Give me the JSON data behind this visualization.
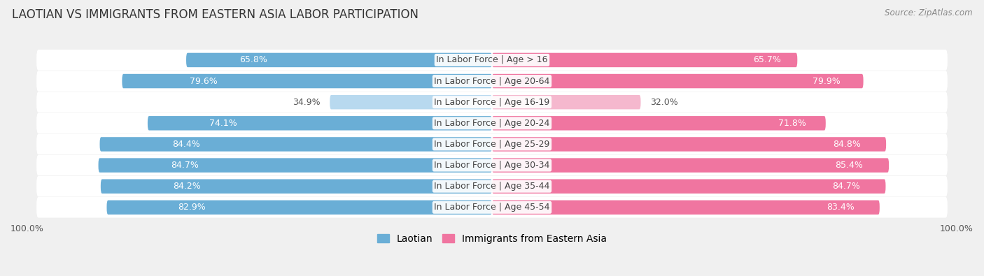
{
  "title": "LAOTIAN VS IMMIGRANTS FROM EASTERN ASIA LABOR PARTICIPATION",
  "source": "Source: ZipAtlas.com",
  "categories": [
    "In Labor Force | Age > 16",
    "In Labor Force | Age 20-64",
    "In Labor Force | Age 16-19",
    "In Labor Force | Age 20-24",
    "In Labor Force | Age 25-29",
    "In Labor Force | Age 30-34",
    "In Labor Force | Age 35-44",
    "In Labor Force | Age 45-54"
  ],
  "laotian_values": [
    65.8,
    79.6,
    34.9,
    74.1,
    84.4,
    84.7,
    84.2,
    82.9
  ],
  "eastern_asia_values": [
    65.7,
    79.9,
    32.0,
    71.8,
    84.8,
    85.4,
    84.7,
    83.4
  ],
  "laotian_color": "#6aaed6",
  "laotian_color_light": "#b8d9ef",
  "eastern_asia_color": "#f075a0",
  "eastern_asia_color_light": "#f5b8ce",
  "bar_height": 0.68,
  "background_color": "#f0f0f0",
  "row_bg_color": "#e8e8e8",
  "label_fontsize": 9,
  "value_fontsize": 9,
  "title_fontsize": 12,
  "legend_fontsize": 10
}
